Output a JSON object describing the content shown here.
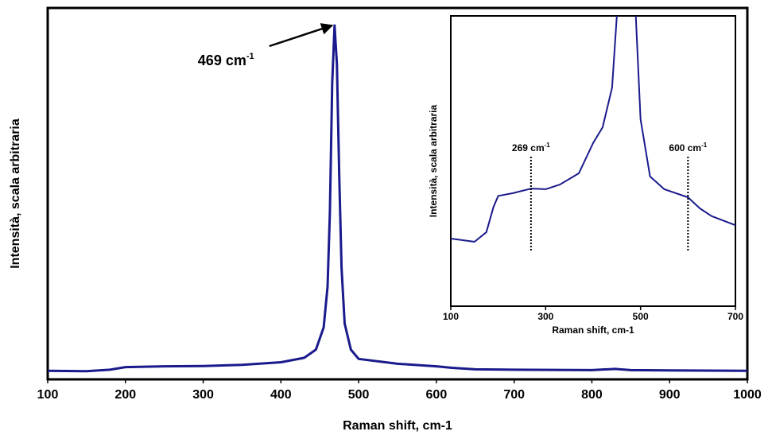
{
  "chart_data": [
    {
      "type": "line",
      "x_label": "Raman shift, cm-1",
      "y_label": "Intensità, scala arbitraria",
      "x": [
        100,
        150,
        180,
        200,
        250,
        300,
        350,
        400,
        430,
        445,
        455,
        460,
        463,
        466,
        469,
        472,
        475,
        478,
        482,
        490,
        500,
        550,
        600,
        620,
        650,
        700,
        800,
        830,
        850,
        900,
        1000
      ],
      "series": [
        {
          "color": "#1a1a8c",
          "values": [
            2.3,
            2.2,
            2.6,
            3.3,
            3.5,
            3.6,
            3.9,
            4.6,
            5.8,
            8,
            14,
            25,
            45,
            80,
            95.3,
            85,
            55,
            30,
            15,
            8,
            5.5,
            4.2,
            3.5,
            3.1,
            2.7,
            2.6,
            2.5,
            2.8,
            2.5,
            2.4,
            2.3
          ]
        }
      ],
      "xlim": [
        100,
        1000
      ],
      "xticks": [
        100,
        200,
        300,
        400,
        500,
        600,
        700,
        800,
        900,
        1000
      ],
      "ylim": [
        0,
        100
      ],
      "annotations": [
        {
          "x": 469,
          "text": "469 cm",
          "sup": "-1"
        }
      ]
    },
    {
      "type": "line",
      "x_label": "Raman shift, cm-1",
      "y_label": "Intensità, scala arbitraria",
      "x": [
        100,
        150,
        175,
        190,
        200,
        230,
        269,
        300,
        330,
        370,
        400,
        420,
        440,
        450,
        469,
        490,
        500,
        520,
        550,
        600,
        625,
        650,
        700
      ],
      "series": [
        {
          "color": "#1a1a8c",
          "values": [
            23.3,
            22.2,
            25.5,
            34.2,
            38,
            38.9,
            40.5,
            40.3,
            41.9,
            45.8,
            56.2,
            61.6,
            75.3,
            100,
            130,
            100,
            64.4,
            44.7,
            40.3,
            37.5,
            33.7,
            31,
            27.9
          ]
        }
      ],
      "xlim": [
        100,
        700
      ],
      "xticks": [
        100,
        300,
        500,
        700
      ],
      "ylim": [
        0,
        100
      ],
      "annotations": [
        {
          "x": 269,
          "text": "269 cm",
          "sup": "-1"
        },
        {
          "x": 600,
          "text": "600 cm",
          "sup": "-1"
        }
      ]
    }
  ]
}
